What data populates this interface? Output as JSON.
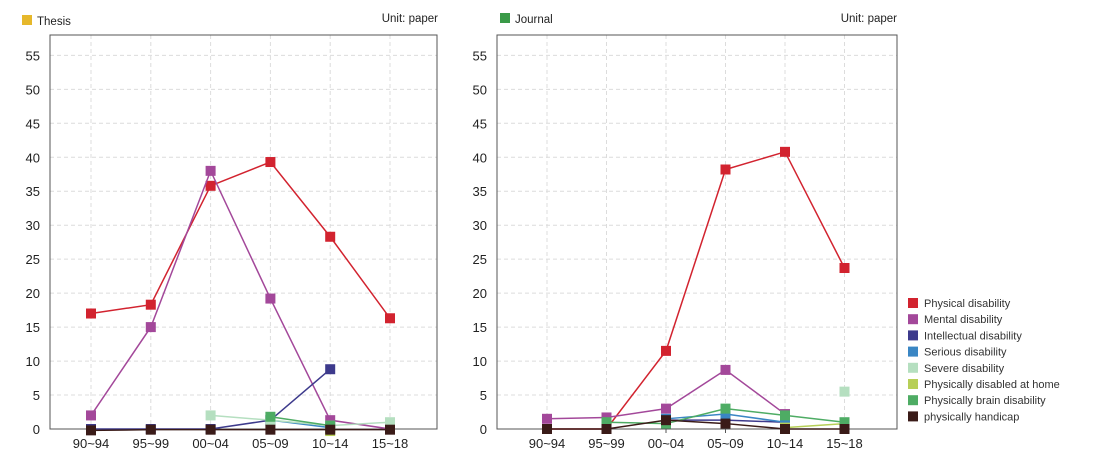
{
  "chart_data": [
    {
      "type": "line",
      "title": "Thesis",
      "title_color": "#e6b82b",
      "unit": "Unit: paper",
      "categories": [
        "90~94",
        "95~99",
        "00~04",
        "05~09",
        "10~14",
        "15~18"
      ],
      "ylim": [
        0,
        58
      ],
      "yticks": [
        0,
        5,
        10,
        15,
        20,
        25,
        30,
        35,
        40,
        45,
        50,
        55
      ],
      "grid": true,
      "series": [
        {
          "name": "Physical disability",
          "color": "#d2232f",
          "values": [
            17,
            18.3,
            35.8,
            39.3,
            28.3,
            16.3
          ]
        },
        {
          "name": "Mental disability",
          "color": "#a3489a",
          "values": [
            2,
            15,
            38,
            19.2,
            1.3,
            0
          ]
        },
        {
          "name": "Intellectual disability",
          "color": "#3d3a8c",
          "values": [
            0,
            0,
            0,
            1.3,
            8.8,
            null
          ]
        },
        {
          "name": "Serious disability",
          "color": "#3a86c4",
          "values": [
            null,
            null,
            null,
            1.3,
            0.2,
            null
          ]
        },
        {
          "name": "Severe disability",
          "color": "#b5dfc0",
          "values": [
            null,
            null,
            2,
            1.3,
            0.5,
            1
          ]
        },
        {
          "name": "Physically disabled at home",
          "color": "#b7cf57",
          "values": [
            null,
            null,
            null,
            null,
            -0.3,
            null
          ]
        },
        {
          "name": "Physically brain disability",
          "color": "#4eac64",
          "values": [
            null,
            null,
            null,
            1.8,
            0.5,
            null
          ]
        },
        {
          "name": "physically handicap",
          "color": "#3a1b18",
          "values": [
            -0.2,
            -0.1,
            -0.1,
            -0.1,
            -0.1,
            -0.1
          ]
        }
      ]
    },
    {
      "type": "line",
      "title": "Journal",
      "title_color": "#3a9a48",
      "unit": "Unit: paper",
      "categories": [
        "90~94",
        "95~99",
        "00~04",
        "05~09",
        "10~14",
        "15~18"
      ],
      "ylim": [
        0,
        58
      ],
      "yticks": [
        0,
        5,
        10,
        15,
        20,
        25,
        30,
        35,
        40,
        45,
        50,
        55
      ],
      "grid": true,
      "series": [
        {
          "name": "Physical disability",
          "color": "#d2232f",
          "values": [
            0,
            0,
            11.5,
            38.2,
            40.8,
            23.7
          ]
        },
        {
          "name": "Mental disability",
          "color": "#a3489a",
          "values": [
            1.5,
            1.7,
            3,
            8.7,
            2.2,
            null
          ]
        },
        {
          "name": "Intellectual disability",
          "color": "#3d3a8c",
          "values": [
            null,
            null,
            1.3,
            1.3,
            1,
            null
          ]
        },
        {
          "name": "Serious disability",
          "color": "#3a86c4",
          "values": [
            null,
            null,
            1.5,
            2.2,
            1,
            null
          ]
        },
        {
          "name": "Severe disability",
          "color": "#b5dfc0",
          "values": [
            null,
            null,
            null,
            null,
            null,
            5.5
          ]
        },
        {
          "name": "Physically disabled at home",
          "color": "#b7cf57",
          "values": [
            null,
            null,
            null,
            null,
            0.2,
            0.8
          ]
        },
        {
          "name": "Physically brain disability",
          "color": "#4eac64",
          "values": [
            null,
            1,
            0.8,
            3,
            2,
            1
          ]
        },
        {
          "name": "physically handicap",
          "color": "#3a1b18",
          "values": [
            0,
            0,
            1.3,
            0.8,
            0,
            0
          ]
        }
      ]
    }
  ],
  "legend": {
    "placement": "bottom-right",
    "items": [
      {
        "label": "Physical disability",
        "color": "#d2232f"
      },
      {
        "label": "Mental disability",
        "color": "#a3489a"
      },
      {
        "label": "Intellectual disability",
        "color": "#3d3a8c"
      },
      {
        "label": "Serious disability",
        "color": "#3a86c4"
      },
      {
        "label": "Severe disability",
        "color": "#b5dfc0"
      },
      {
        "label": "Physically disabled at home",
        "color": "#b7cf57"
      },
      {
        "label": "Physically brain disability",
        "color": "#4eac64"
      },
      {
        "label": "physically handicap",
        "color": "#3a1b18"
      }
    ]
  }
}
